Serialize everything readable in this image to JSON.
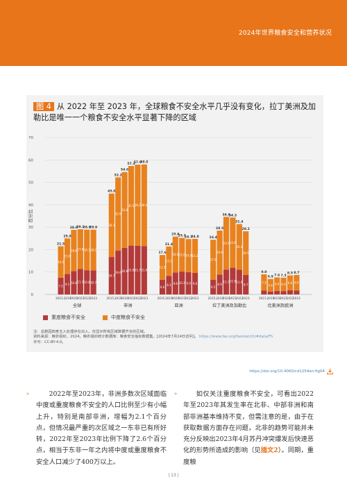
{
  "header": {
    "title": "2024年世界粮食安全和营养状况"
  },
  "figure": {
    "label": "图 4",
    "title": "从 2022 年至 2023 年，全球粮食不安全水平几乎没有变化，拉丁美洲及加勒比是唯一一个粮食不安全水平显著下降的区域",
    "notes_line1": "注：总数因四舍五入处理存在出入。仅显示所有区域数据齐全的区域。",
    "notes_line2_prefix": "资料来源：粮农组织，2024。粮农组织统计数据库：粮食安全指标数据集。[2024年7月24日访问]。",
    "notes_url": "https://www.fao.org/faostat/zh/#data/FS",
    "notes_line3": "许可：CC-BY-4.0。",
    "doi": "https://doi.org/10.4060/cd1254en-fig04",
    "colors": {
      "severe": "#B43A3A",
      "moderate": "#E8821E",
      "accent": "#E8751A"
    }
  },
  "body": {
    "para_left": "2022年至2023年，非洲多数次区域面临中度或重度粮食不安全的人口比例至少有小幅上升，特别是南部非洲，增幅为2.1个百分点，但情况最严重的次区域之一东非已有所好转，2022年至2023年比例下降了2.6个百分点，相当于东非一年之内将中度或重度粮食不安全人口减少了400万以上。",
    "para_right_before": "如仅关注重度粮食不安全，可看出2022年至2023年其发生率在北非、中部非洲和南部非洲基本维持不变，但需注意的是，由于在获取数据方面存在问题，北非的趋势可能并未充分反映出2023年4月苏丹冲突爆发后快速恶化的形势所造成的影响（见",
    "para_right_link": "插文2",
    "para_right_after": "）。同期，重度粮",
    "page_number": "| 13 |"
  },
  "chart_data": {
    "type": "bar",
    "stacked": true,
    "ylabel": "百分比",
    "ylim": [
      0,
      70
    ],
    "yticks": [
      0,
      10,
      20,
      30,
      40,
      50,
      60,
      70
    ],
    "grid": true,
    "legend_position": "bottom",
    "categories": [
      "2015…",
      "2019",
      "2020",
      "2021",
      "2022",
      "2023"
    ],
    "legend": [
      {
        "key": "severe",
        "label": "重度粮食不安全"
      },
      {
        "key": "moderate",
        "label": "中度粮食不安全"
      }
    ],
    "groups": [
      {
        "name": "全球",
        "total": [
          21.5,
          25.0,
          28.8,
          29.1,
          28.9,
          28.9
        ],
        "severe": [
          7.5,
          9.1,
          10.4,
          11.3,
          10.8,
          10.7
        ],
        "moderate": [
          14.0,
          15.9,
          18.4,
          17.8,
          18.1,
          18.2
        ]
      },
      {
        "name": "非洲",
        "total": [
          45.0,
          52.2,
          54.6,
          57.3,
          57.9,
          58.0
        ],
        "severe": [
          16.7,
          19.6,
          20.8,
          21.8,
          21.7,
          21.6
        ],
        "moderate": [
          28.3,
          32.6,
          33.8,
          35.5,
          36.2,
          36.4
        ]
      },
      {
        "name": "亚洲",
        "total": [
          17.6,
          21.4,
          25.8,
          25.2,
          24.7,
          24.8
        ],
        "severe": [
          6.6,
          8.3,
          9.8,
          10.2,
          9.9,
          9.6
        ],
        "moderate": [
          11.0,
          13.1,
          16.0,
          15.0,
          14.8,
          15.2
        ]
      },
      {
        "name": "拉丁美洲及加勒比",
        "total": [
          24.4,
          28.5,
          34.6,
          34.3,
          31.4,
          28.2
        ],
        "severe": [
          6.5,
          8.9,
          11.1,
          11.9,
          11.0,
          8.7
        ],
        "moderate": [
          17.9,
          19.6,
          23.5,
          22.4,
          20.4,
          19.5
        ]
      },
      {
        "name": "北美洲及欧洲",
        "total": [
          9.0,
          6.9,
          7.6,
          7.5,
          8.5,
          8.7
        ],
        "severe": [
          1.7,
          1.3,
          1.6,
          1.5,
          1.9,
          1.8
        ],
        "moderate": [
          7.3,
          5.6,
          6.0,
          6.0,
          6.6,
          6.9
        ]
      }
    ]
  }
}
